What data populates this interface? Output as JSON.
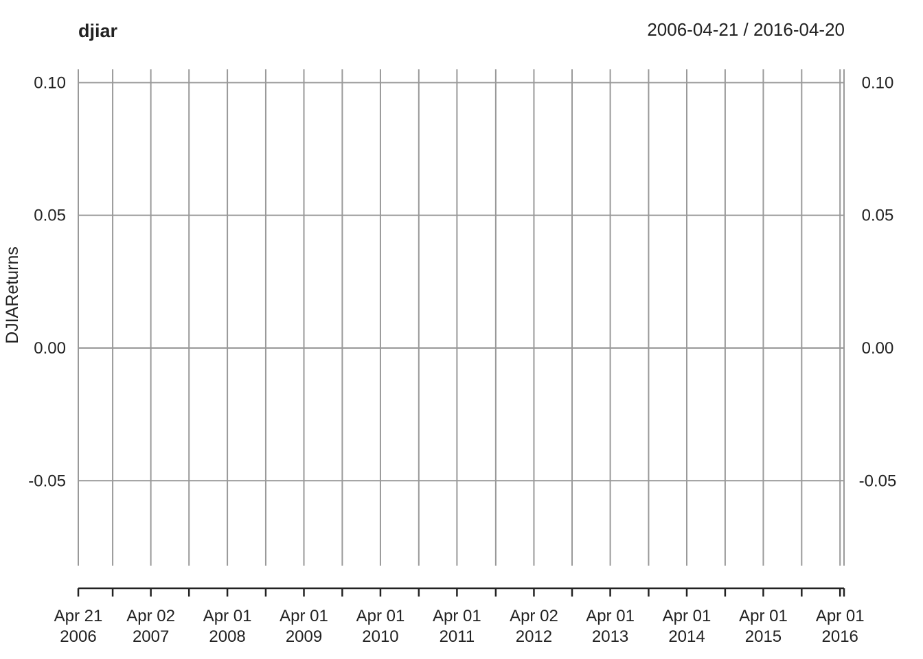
{
  "chart_data": {
    "type": "line",
    "title": "djiar",
    "date_range": "2006-04-21 / 2016-04-20",
    "ylabel": "DJIAReturns",
    "xlim": [
      "2006-04-21",
      "2016-04-20"
    ],
    "ylim": [
      -0.082,
      0.105
    ],
    "y_ticks": [
      {
        "value": 0.1,
        "label": "0.10"
      },
      {
        "value": 0.05,
        "label": "0.05"
      },
      {
        "value": 0.0,
        "label": "0.00"
      },
      {
        "value": -0.05,
        "label": "-0.05"
      }
    ],
    "x_ticks": [
      {
        "date": "2006-04-21",
        "label1": "Apr 21",
        "label2": "2006"
      },
      {
        "date": "2007-04-02",
        "label1": "Apr 02",
        "label2": "2007"
      },
      {
        "date": "2008-04-01",
        "label1": "Apr 01",
        "label2": "2008"
      },
      {
        "date": "2009-04-01",
        "label1": "Apr 01",
        "label2": "2009"
      },
      {
        "date": "2010-04-01",
        "label1": "Apr 01",
        "label2": "2010"
      },
      {
        "date": "2011-04-01",
        "label1": "Apr 01",
        "label2": "2011"
      },
      {
        "date": "2012-04-02",
        "label1": "Apr 02",
        "label2": "2012"
      },
      {
        "date": "2013-04-01",
        "label1": "Apr 01",
        "label2": "2013"
      },
      {
        "date": "2014-04-01",
        "label1": "Apr 01",
        "label2": "2014"
      },
      {
        "date": "2015-04-01",
        "label1": "Apr 01",
        "label2": "2015"
      },
      {
        "date": "2016-04-01",
        "label1": "Apr 01",
        "label2": "2016"
      }
    ],
    "minor_x_ticks": [
      "2006-10-02",
      "2007-10-01",
      "2008-10-01",
      "2009-10-01",
      "2010-10-01",
      "2011-10-03",
      "2012-10-01",
      "2013-10-01",
      "2014-10-01",
      "2015-10-01",
      "2016-04-20"
    ],
    "series": [
      {
        "values": []
      }
    ],
    "grid": true,
    "colors": {
      "grid": "#999999",
      "axis": "#222222",
      "text": "#222222",
      "background": "#ffffff"
    }
  }
}
